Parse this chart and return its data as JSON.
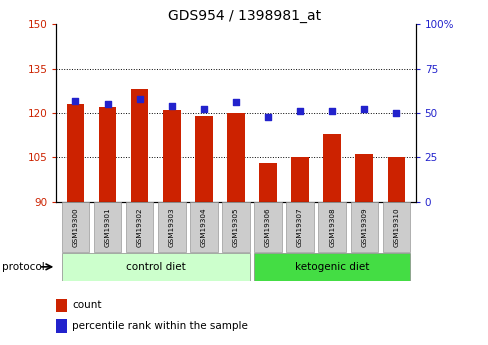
{
  "title": "GDS954 / 1398981_at",
  "samples": [
    "GSM19300",
    "GSM19301",
    "GSM19302",
    "GSM19303",
    "GSM19304",
    "GSM19305",
    "GSM19306",
    "GSM19307",
    "GSM19308",
    "GSM19309",
    "GSM19310"
  ],
  "bar_values": [
    123,
    122,
    128,
    121,
    119,
    120,
    103,
    105,
    113,
    106,
    105
  ],
  "dot_values_pct": [
    57,
    55,
    58,
    54,
    52,
    56,
    48,
    51,
    51,
    52,
    50
  ],
  "ylim_left": [
    90,
    150
  ],
  "ylim_right": [
    0,
    100
  ],
  "yticks_left": [
    90,
    105,
    120,
    135,
    150
  ],
  "yticks_right": [
    0,
    25,
    50,
    75,
    100
  ],
  "ytick_labels_left": [
    "90",
    "105",
    "120",
    "135",
    "150"
  ],
  "ytick_labels_right": [
    "0",
    "25",
    "50",
    "75",
    "100%"
  ],
  "bar_color": "#cc2200",
  "dot_color": "#2222cc",
  "grid_color": "#000000",
  "bg_color": "#ffffff",
  "protocol_groups": [
    {
      "label": "control diet",
      "start": 0,
      "end": 5,
      "color": "#ccffcc"
    },
    {
      "label": "ketogenic diet",
      "start": 6,
      "end": 10,
      "color": "#44dd44"
    }
  ],
  "protocol_label": "protocol",
  "legend_count": "count",
  "legend_pct": "percentile rank within the sample",
  "tick_bg": "#cccccc",
  "bar_width": 0.55
}
